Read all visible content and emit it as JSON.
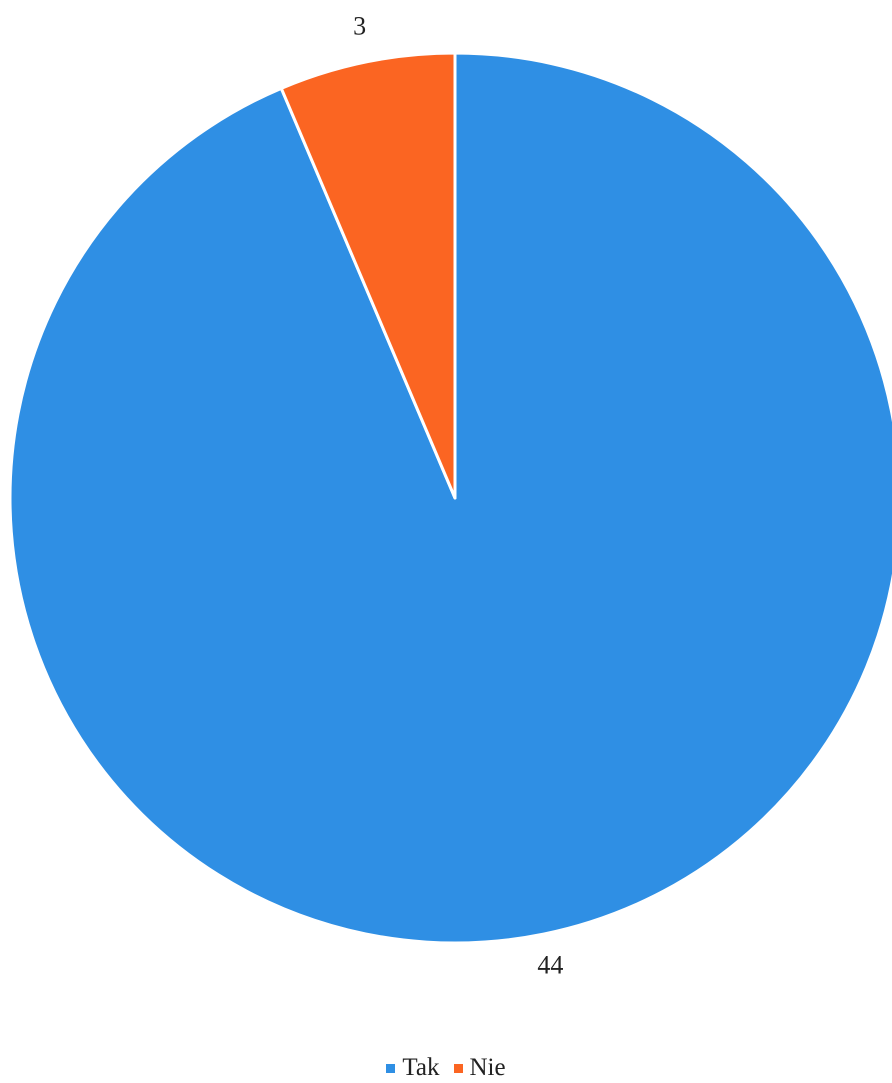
{
  "chart_data": {
    "type": "pie",
    "title": "",
    "slices": [
      {
        "label": "Tak",
        "value": 44,
        "color": "#2f8fe4"
      },
      {
        "label": "Nie",
        "value": 3,
        "color": "#fb6522"
      }
    ],
    "start_angle_deg": 0,
    "direction": "clockwise",
    "legend_position": "bottom"
  }
}
